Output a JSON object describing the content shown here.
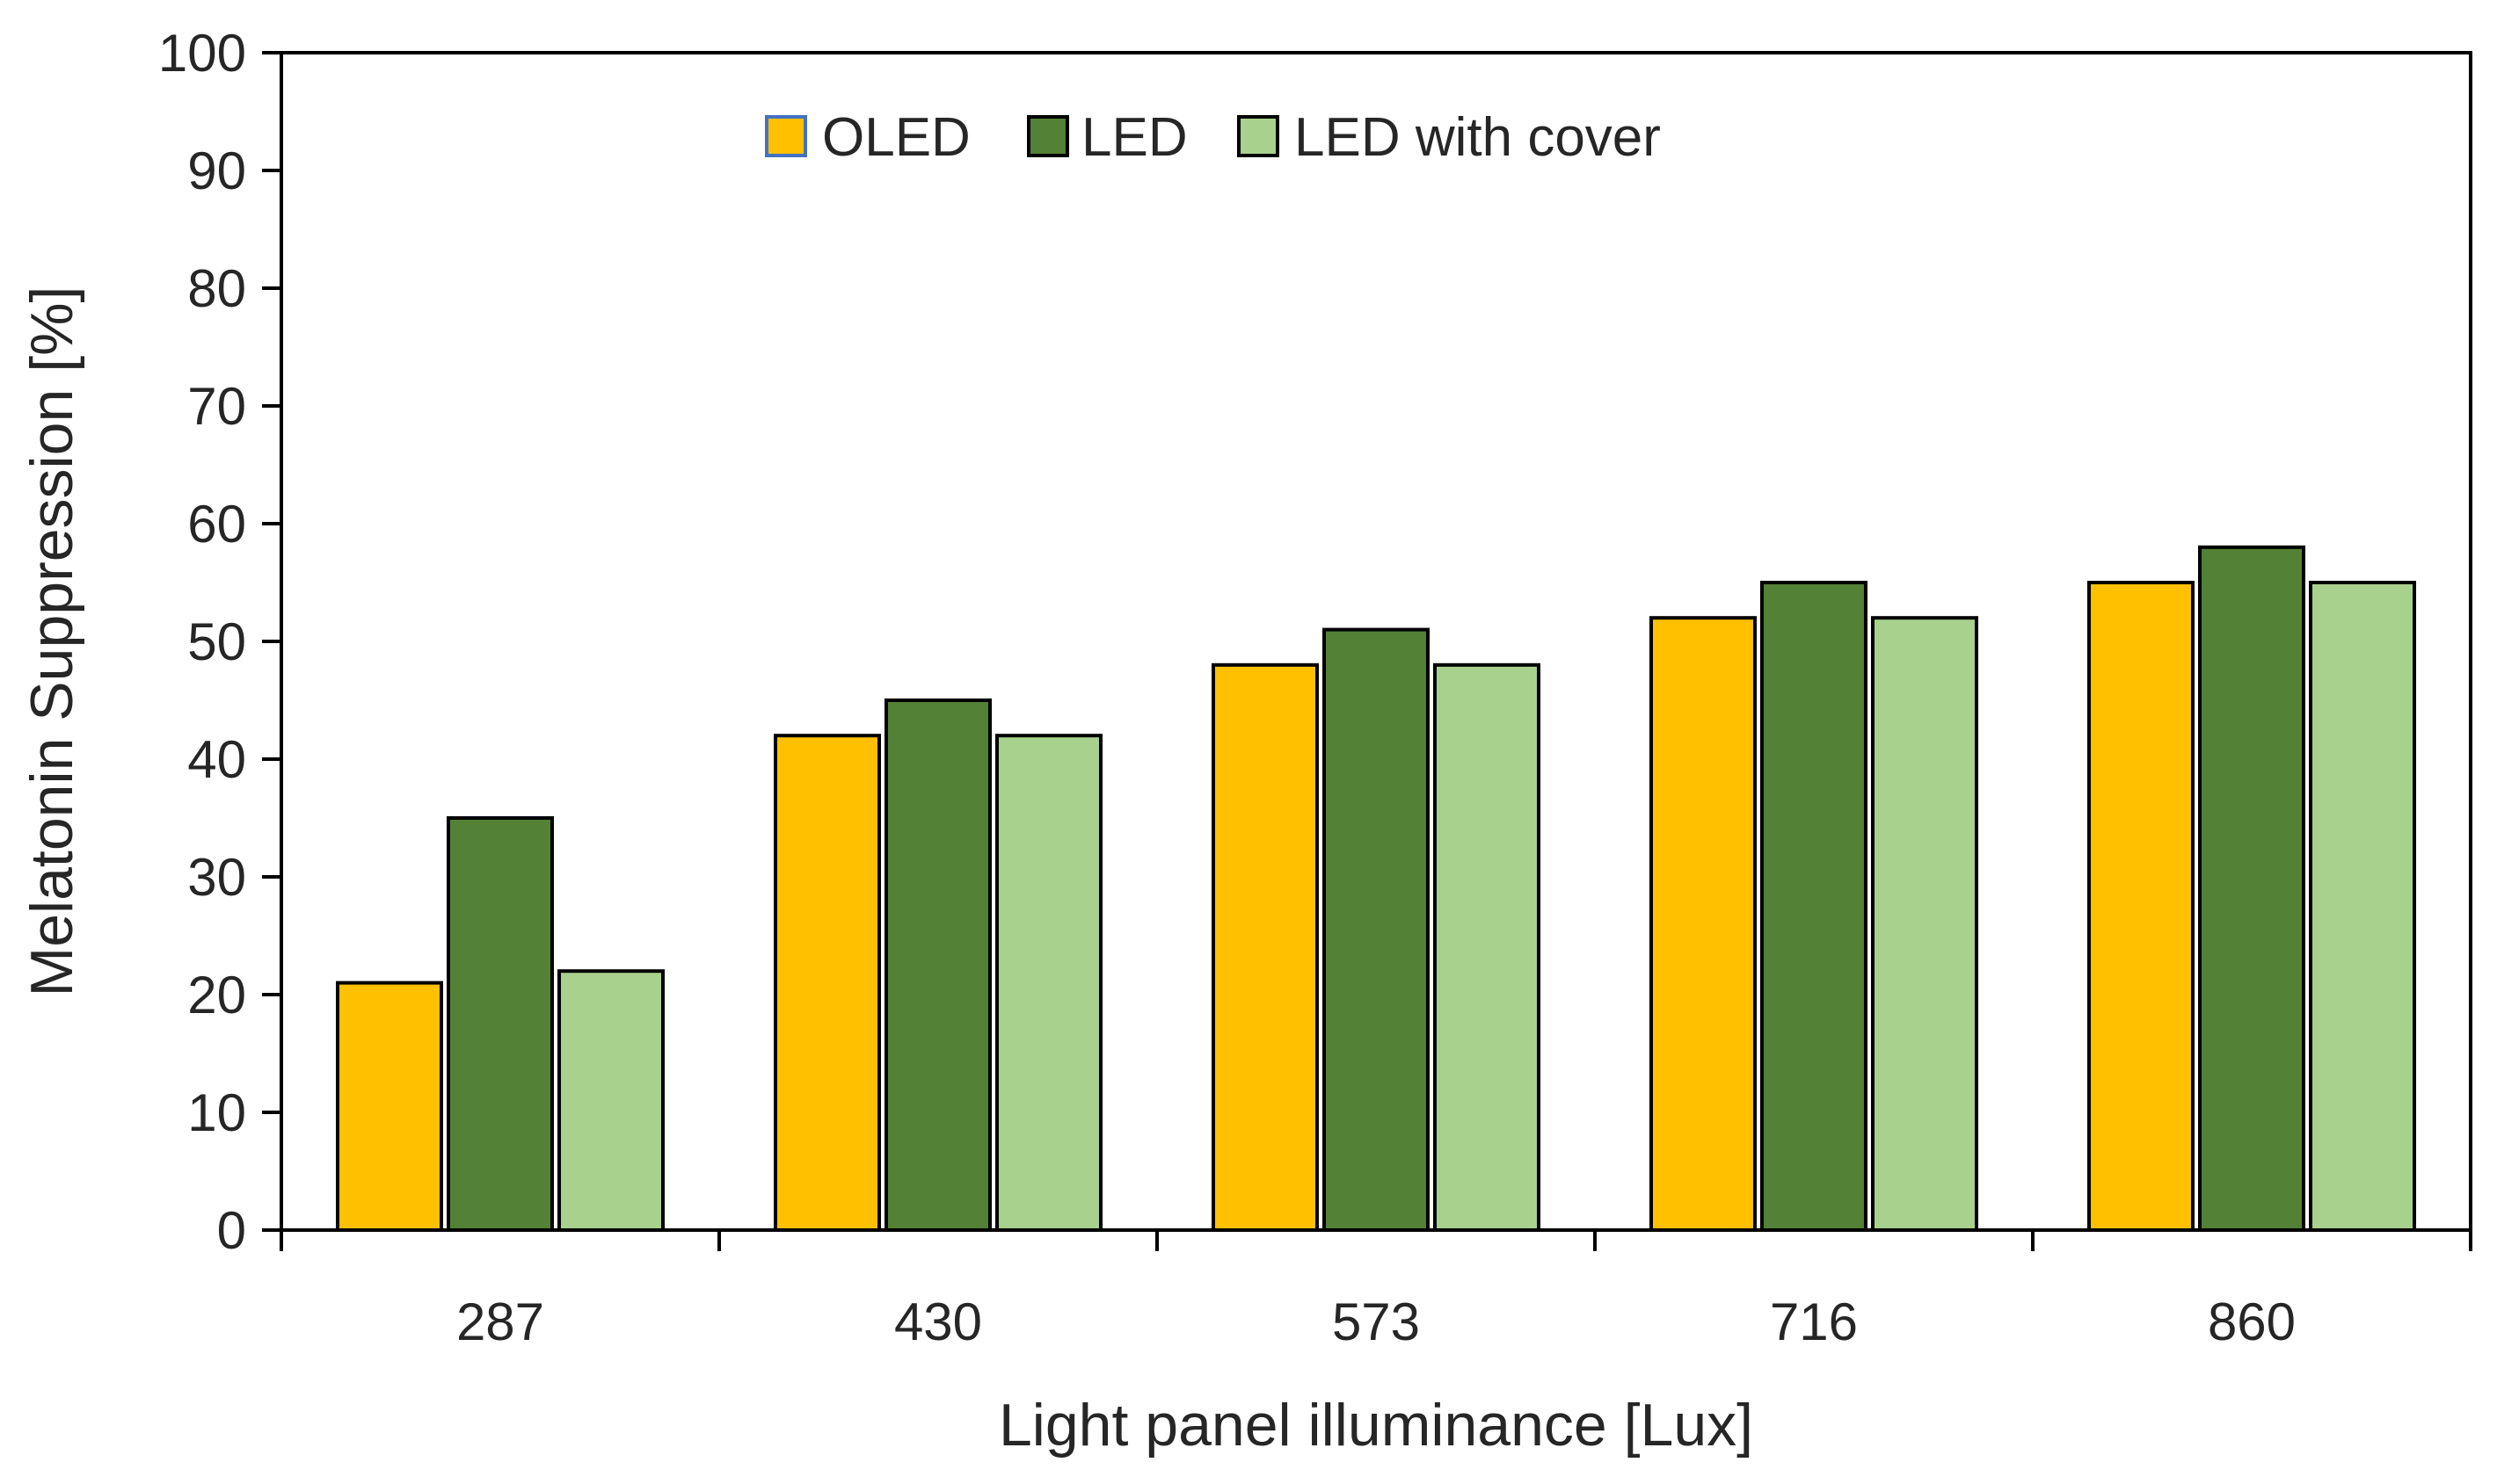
{
  "chart_data": {
    "type": "bar",
    "title": "",
    "xlabel": "Light panel illuminance [Lux]",
    "ylabel": "Melatonin Suppression [%]",
    "ylim": [
      0,
      100
    ],
    "yticks": [
      0,
      10,
      20,
      30,
      40,
      50,
      60,
      70,
      80,
      90,
      100
    ],
    "categories": [
      "287",
      "430",
      "573",
      "716",
      "860"
    ],
    "series": [
      {
        "name": "OLED",
        "color": "#FFC000",
        "values": [
          21,
          42,
          48,
          52,
          55
        ]
      },
      {
        "name": "LED",
        "color": "#538135",
        "values": [
          35,
          45,
          51,
          55,
          58
        ]
      },
      {
        "name": "LED with cover",
        "color": "#A9D18E",
        "values": [
          22,
          42,
          48,
          52,
          55
        ]
      }
    ],
    "legend": {
      "position": "top-center",
      "orientation": "horizontal"
    },
    "grid": false
  }
}
